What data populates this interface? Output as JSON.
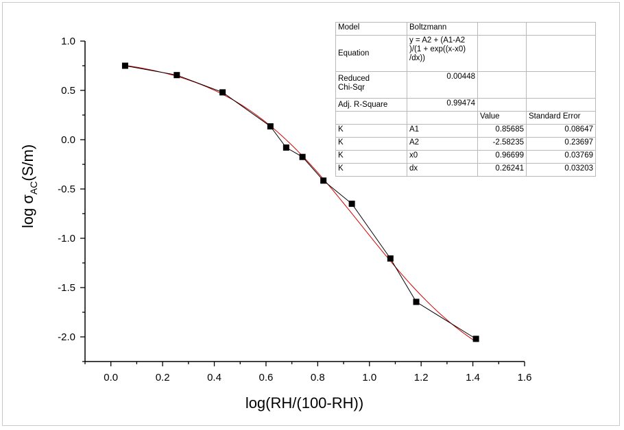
{
  "chart_data": {
    "type": "scatter",
    "xlabel": "log(RH/(100-RH))",
    "ylabel": {
      "prefix": "log  σ",
      "subscript": "AC",
      "suffix": "(S/m)"
    },
    "xlim": [
      -0.1,
      1.6
    ],
    "ylim": [
      -2.25,
      1.0
    ],
    "xticks": [
      "0.0",
      "0.2",
      "0.4",
      "0.6",
      "0.8",
      "1.0",
      "1.2",
      "1.4",
      "1.6"
    ],
    "yticks": [
      "1.0",
      "0.5",
      "0.0",
      "-0.5",
      "-1.0",
      "-1.5",
      "-2.0"
    ],
    "grid": false,
    "series": [
      {
        "marker": "square",
        "color": "#000000",
        "x": [
          0.055,
          0.255,
          0.432,
          0.617,
          0.678,
          0.741,
          0.822,
          0.932,
          1.081,
          1.181,
          1.412
        ],
        "y": [
          0.75,
          0.655,
          0.48,
          0.135,
          -0.08,
          -0.175,
          -0.415,
          -0.65,
          -1.205,
          -1.645,
          -2.02
        ]
      }
    ],
    "fit": {
      "model": "Boltzmann",
      "color": "#d40000",
      "A1": 0.85685,
      "A2": -2.58235,
      "x0": 0.96699,
      "dx": 0.26241,
      "x_range": [
        0.055,
        1.412
      ]
    }
  },
  "fit_table": {
    "model_label": "Model",
    "model_value": "Boltzmann",
    "equation_label": "Equation",
    "equation_value": "y = A2 + (A1-A2\n)/(1 + exp((x-x0)\n/dx))",
    "chisqr_label": "Reduced\nChi-Sqr",
    "chisqr_value": "0.00448",
    "r2_label": "Adj. R-Square",
    "r2_value": "0.99474",
    "col_value": "Value",
    "col_error": "Standard Error",
    "params": [
      {
        "dep": "K",
        "name": "A1",
        "value": "0.85685",
        "error": "0.08647"
      },
      {
        "dep": "K",
        "name": "A2",
        "value": "-2.58235",
        "error": "0.23697"
      },
      {
        "dep": "K",
        "name": "x0",
        "value": "0.96699",
        "error": "0.03769"
      },
      {
        "dep": "K",
        "name": "dx",
        "value": "0.26241",
        "error": "0.03203"
      }
    ]
  }
}
